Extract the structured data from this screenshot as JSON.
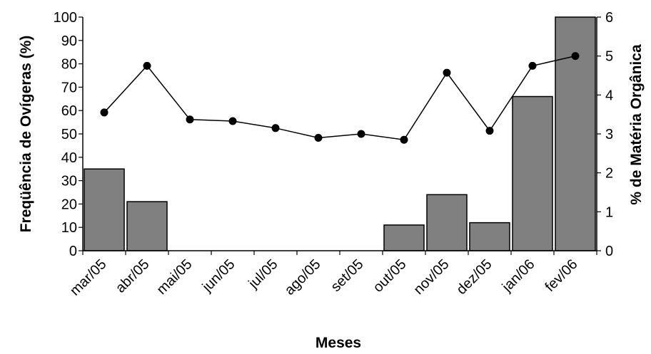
{
  "chart_data": {
    "type": "bar+line",
    "categories": [
      "mar/05",
      "abr/05",
      "mai/05",
      "jun/05",
      "jul/05",
      "ago/05",
      "set/05",
      "out/05",
      "nov/05",
      "dez/05",
      "jan/06",
      "fev/06"
    ],
    "series": [
      {
        "name": "Freqüência de Ovígeras (%)",
        "type": "bar",
        "axis": "left",
        "color": "#808080",
        "values": [
          35,
          21,
          0,
          0,
          0,
          0,
          0,
          11,
          24,
          12,
          66,
          100
        ]
      },
      {
        "name": "% de Matéria Orgânica",
        "type": "line",
        "axis": "right",
        "color": "#000000",
        "values": [
          3.55,
          4.75,
          3.37,
          3.33,
          3.15,
          2.9,
          3.0,
          2.85,
          4.57,
          3.08,
          4.75,
          5.0
        ]
      }
    ],
    "xlabel": "Meses",
    "ylabel_left": "Freqüência de Ovígeras (%)",
    "ylabel_right": "% de Matéria Orgânica",
    "ylim_left": [
      0,
      100
    ],
    "ylim_right": [
      0,
      6
    ],
    "yticks_left": [
      "0",
      "10",
      "20",
      "30",
      "40",
      "50",
      "60",
      "70",
      "80",
      "90",
      "100"
    ],
    "yticks_right": [
      "0",
      "1",
      "2",
      "3",
      "4",
      "5",
      "6"
    ],
    "grid": false,
    "legend": "none"
  }
}
